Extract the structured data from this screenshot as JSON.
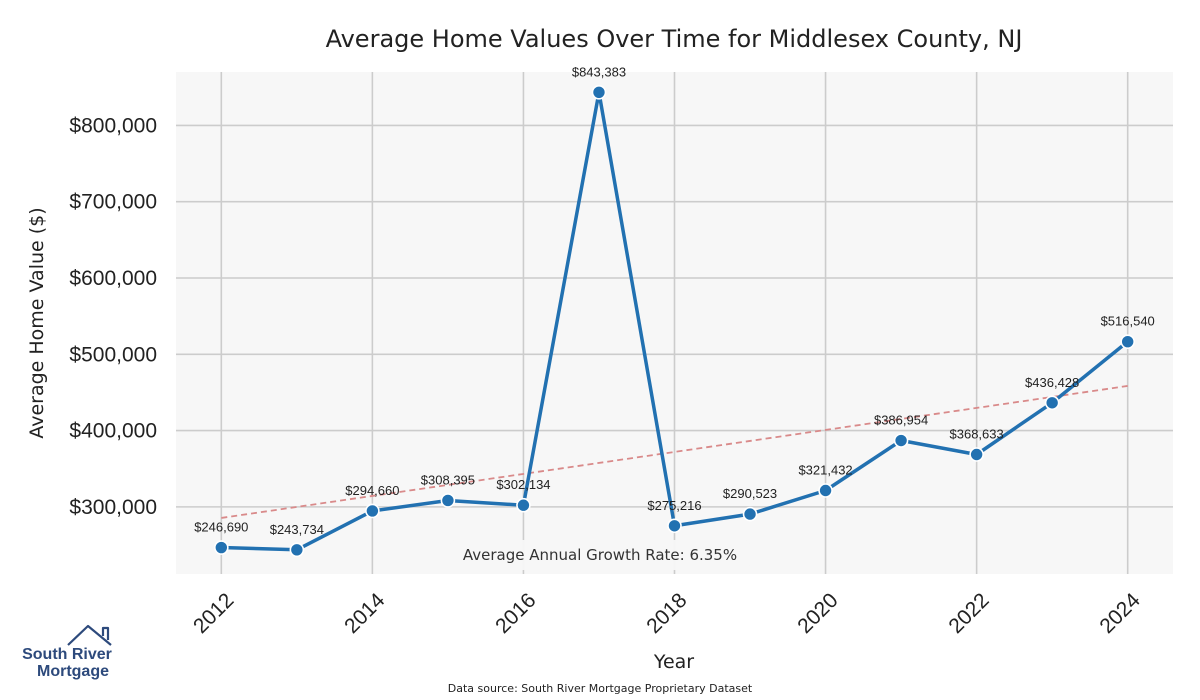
{
  "chart_data": {
    "type": "line",
    "title": "Average Home Values Over Time for Middlesex County, NJ",
    "xlabel": "Year",
    "ylabel": "Average Home Value ($)",
    "x": [
      2012,
      2013,
      2014,
      2015,
      2016,
      2017,
      2018,
      2019,
      2020,
      2021,
      2022,
      2023,
      2024
    ],
    "x_ticks": [
      "2012",
      "2014",
      "2016",
      "2018",
      "2020",
      "2022",
      "2024"
    ],
    "y_ticks": [
      "$300,000",
      "$400,000",
      "$500,000",
      "$600,000",
      "$700,000",
      "$800,000"
    ],
    "xlim": [
      2011.4,
      2024.6
    ],
    "ylim": [
      212000,
      870000
    ],
    "series": [
      {
        "name": "Average Home Value",
        "color": "#2271b1",
        "values": [
          246690,
          243734,
          294660,
          308395,
          302134,
          843383,
          275216,
          290523,
          321432,
          386954,
          368633,
          436428,
          516540
        ],
        "labels": [
          "$246,690",
          "$243,734",
          "$294,660",
          "$308,395",
          "$302,134",
          "$843,383",
          "$275,216",
          "$290,523",
          "$321,432",
          "$386,954",
          "$368,633",
          "$436,428",
          "$516,540"
        ]
      }
    ],
    "trend": {
      "name": "Trend",
      "color": "#d98a8a",
      "x": [
        2012,
        2024
      ],
      "y": [
        285500,
        458500
      ]
    },
    "annotation": "Average Annual Growth Rate: 6.35%",
    "source": "Data source: South River Mortgage Proprietary Dataset",
    "grid": true
  },
  "logo": {
    "line1": "South River",
    "line2": "Mortgage",
    "color": "#2d4a7c"
  }
}
